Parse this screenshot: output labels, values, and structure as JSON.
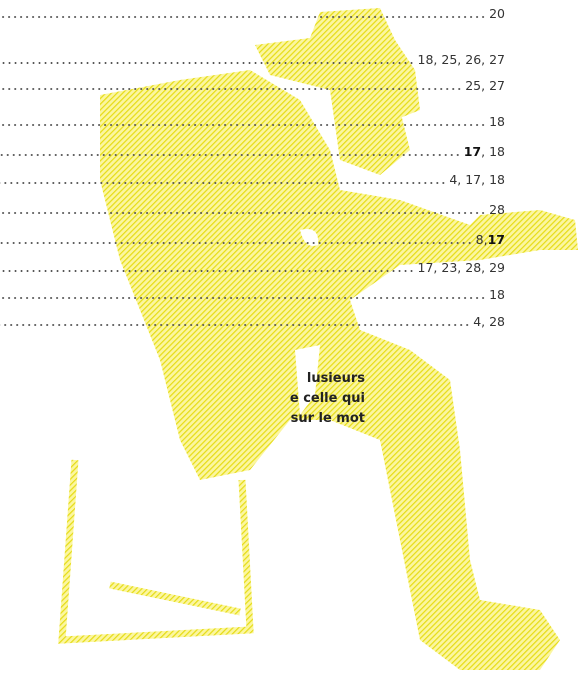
{
  "index": {
    "entries": [
      {
        "segments": [
          {
            "text": "20"
          }
        ]
      },
      {
        "segments": [
          {
            "text": "18, 25, 26, 27"
          }
        ]
      },
      {
        "segments": [
          {
            "text": "25, 27"
          }
        ]
      },
      {
        "segments": [
          {
            "text": "18"
          }
        ]
      },
      {
        "segments": [
          {
            "text": "17",
            "bold": true
          },
          {
            "text": ", 18"
          }
        ]
      },
      {
        "segments": [
          {
            "text": "4, 17, 18"
          }
        ]
      },
      {
        "segments": [
          {
            "text": "28"
          }
        ]
      },
      {
        "segments": [
          {
            "text": "8, "
          },
          {
            "text": "17",
            "bold": true
          }
        ]
      },
      {
        "segments": [
          {
            "text": "17, 23, 28, 29"
          }
        ]
      },
      {
        "segments": [
          {
            "text": "18"
          }
        ]
      },
      {
        "segments": [
          {
            "text": "4, 28"
          }
        ]
      }
    ]
  },
  "note": {
    "lines": [
      "lusieurs",
      "e celle qui",
      "sur le mot"
    ]
  }
}
